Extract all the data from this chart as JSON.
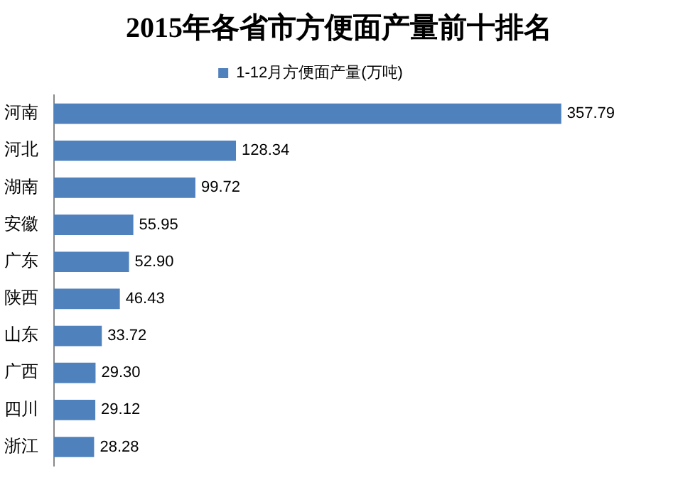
{
  "chart_data": {
    "type": "bar",
    "orientation": "horizontal",
    "title": "2015年各省市方便面产量前十排名",
    "categories": [
      "河南",
      "河北",
      "湖南",
      "安徽",
      "广东",
      "陕西",
      "山东",
      "广西",
      "四川",
      "浙江"
    ],
    "series": [
      {
        "name": "1-12月方便面产量(万吨)",
        "color": "#4f81bd",
        "values": [
          357.79,
          128.34,
          99.72,
          55.95,
          52.9,
          46.43,
          33.72,
          29.3,
          29.12,
          28.28
        ],
        "value_labels": [
          "357.79",
          "128.34",
          "99.72",
          "55.95",
          "52.90",
          "46.43",
          "33.72",
          "29.30",
          "29.12",
          "28.28"
        ]
      }
    ],
    "legend": "top",
    "tick_labels": "y"
  }
}
